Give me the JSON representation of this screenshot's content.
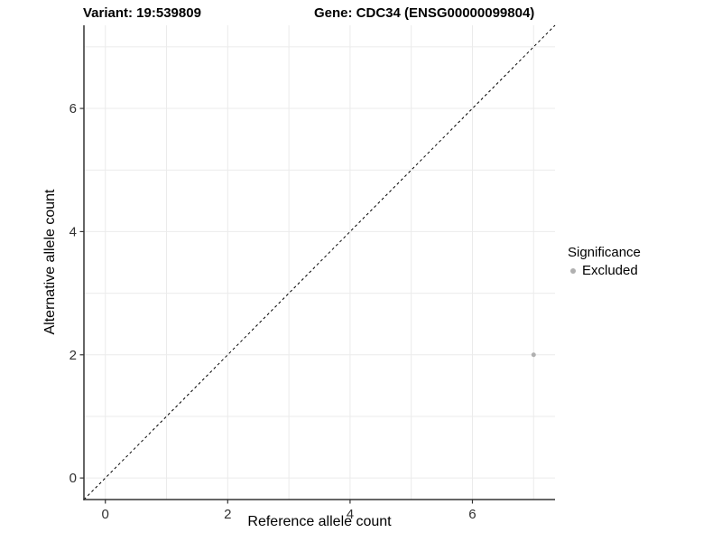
{
  "header": {
    "variant_title": "Variant: 19:539809",
    "gene_title": "Gene: CDC34 (ENSG00000099804)"
  },
  "chart_data": {
    "type": "scatter",
    "xlabel": "Reference allele count",
    "ylabel": "Alternative allele count",
    "xlim": [
      -0.35,
      7.35
    ],
    "ylim": [
      -0.35,
      7.35
    ],
    "x_major_ticks": [
      0,
      2,
      4,
      6
    ],
    "y_major_ticks": [
      0,
      2,
      4,
      6
    ],
    "gridline_values": [
      0,
      1,
      2,
      3,
      4,
      5,
      6,
      7
    ],
    "grid": "on",
    "points": [
      {
        "x": 7,
        "y": 2,
        "series": "Excluded"
      }
    ],
    "identity_line": {
      "style": "dashed",
      "from": [
        -0.35,
        -0.35
      ],
      "to": [
        7.35,
        7.35
      ],
      "color": "#000000"
    },
    "legend": {
      "title": "Significance",
      "position": "right",
      "entries": [
        {
          "label": "Excluded",
          "color": "#b0b0b0"
        }
      ]
    },
    "colors": {
      "grid": "#ebebeb",
      "axis": "#333333",
      "tick_label": "#303030",
      "point": "#b0b0b0",
      "background": "#ffffff"
    }
  }
}
